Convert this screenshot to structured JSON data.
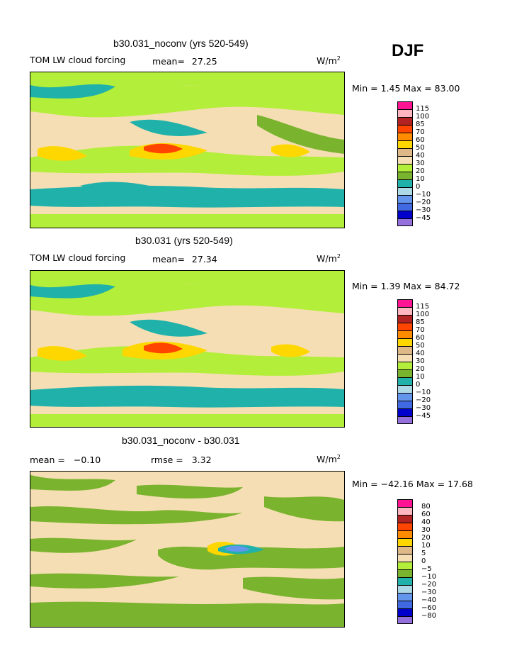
{
  "season": "DJF",
  "panels": [
    {
      "title": "b30.031_noconv (yrs 520-549)",
      "field": "TOM LW cloud forcing",
      "stat_label": "mean=",
      "stat_value": "27.25",
      "units": "W/m",
      "units_exp": "2",
      "minmax": "Min =   1.45 Max =  83.00",
      "levels": [
        "115",
        "100",
        "85",
        "70",
        "60",
        "50",
        "40",
        "30",
        "20",
        "10",
        "0",
        "−10",
        "−20",
        "−30",
        "−45"
      ],
      "colors": [
        "#ff1493",
        "#ffb6c1",
        "#b22222",
        "#ff4500",
        "#ff8c00",
        "#ffd700",
        "#deb887",
        "#f5deb3",
        "#b3ee3a",
        "#7ab32e",
        "#20b2aa",
        "#add8e6",
        "#6495ed",
        "#4169e1",
        "#0000cd",
        "#9370db"
      ]
    },
    {
      "title": "b30.031 (yrs 520-549)",
      "field": "TOM LW cloud forcing",
      "stat_label": "mean=",
      "stat_value": "27.34",
      "units": "W/m",
      "units_exp": "2",
      "minmax": "Min =   1.39 Max =  84.72",
      "levels": [
        "115",
        "100",
        "85",
        "70",
        "60",
        "50",
        "40",
        "30",
        "20",
        "10",
        "0",
        "−10",
        "−20",
        "−30",
        "−45"
      ],
      "colors": [
        "#ff1493",
        "#ffb6c1",
        "#b22222",
        "#ff4500",
        "#ff8c00",
        "#ffd700",
        "#deb887",
        "#f5deb3",
        "#b3ee3a",
        "#7ab32e",
        "#20b2aa",
        "#add8e6",
        "#6495ed",
        "#4169e1",
        "#0000cd",
        "#9370db"
      ]
    },
    {
      "title": "b30.031_noconv - b30.031",
      "stat1_label": "mean =",
      "stat1_value": "−0.10",
      "stat2_label": "rmse =",
      "stat2_value": "3.32",
      "units": "W/m",
      "units_exp": "2",
      "minmax": "Min = −42.16 Max =  17.68",
      "levels": [
        "80",
        "60",
        "40",
        "30",
        "20",
        "10",
        "5",
        "0",
        "−5",
        "−10",
        "−20",
        "−30",
        "−40",
        "−60",
        "−80"
      ],
      "colors": [
        "#ff1493",
        "#ffb6c1",
        "#b22222",
        "#ff4500",
        "#ff8c00",
        "#ffd700",
        "#deb887",
        "#f5deb3",
        "#b3ee3a",
        "#7ab32e",
        "#20b2aa",
        "#add8e6",
        "#6495ed",
        "#4169e1",
        "#0000cd",
        "#9370db"
      ]
    }
  ]
}
